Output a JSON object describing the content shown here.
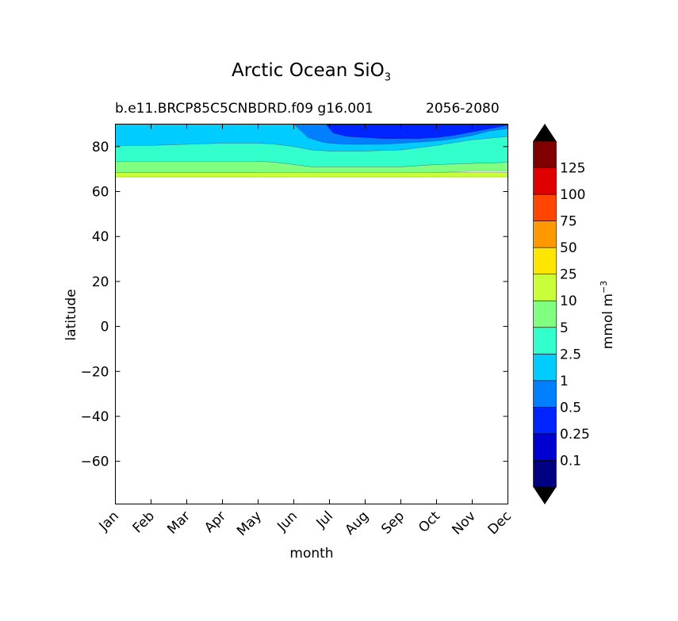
{
  "chart_data": {
    "type": "heatmap",
    "title_main": "Arctic Ocean SiO",
    "title_sub": "3",
    "subtitle_left": "b.e11.BRCP85C5CNBDRD.f09 g16.001",
    "subtitle_right": "2056-2080",
    "xlabel": "month",
    "ylabel": "latitude",
    "x_categories": [
      "Jan",
      "Feb",
      "Mar",
      "Apr",
      "May",
      "Jun",
      "Jul",
      "Aug",
      "Sep",
      "Oct",
      "Nov",
      "Dec"
    ],
    "y_ticks": [
      80,
      60,
      40,
      20,
      0,
      -20,
      -40,
      -60
    ],
    "y_range": [
      -79,
      90
    ],
    "colorbar": {
      "label": "mmol m",
      "label_exp": "−3",
      "levels": [
        "0.1",
        "0.25",
        "0.5",
        "1",
        "2.5",
        "5",
        "10",
        "25",
        "50",
        "75",
        "100",
        "125"
      ],
      "colors": [
        "#000080",
        "#0000d0",
        "#0024ff",
        "#0080ff",
        "#00ccff",
        "#33ffcc",
        "#80ff80",
        "#c8ff38",
        "#ffe600",
        "#ff9900",
        "#ff4500",
        "#e00000",
        "#800000"
      ],
      "extend": "both"
    },
    "bands": [
      {
        "level": 4,
        "x": [
          0,
          1,
          2,
          3,
          4,
          4.5,
          5,
          5.5,
          6,
          7,
          8,
          9,
          10,
          11
        ],
        "lo": [
          80.5,
          80.5,
          81,
          81.5,
          81.5,
          81,
          80,
          78.5,
          78,
          78,
          78.5,
          80.5,
          83,
          84.5
        ],
        "hi": [
          90,
          90,
          90,
          90,
          90,
          90,
          90,
          90,
          90,
          90,
          90,
          90,
          90,
          90
        ]
      },
      {
        "level": 3,
        "x": [
          5,
          5.4,
          5.8,
          6,
          6.5,
          7,
          7.5,
          8,
          8.5,
          9,
          9.5,
          10,
          10.5,
          11
        ],
        "lo": [
          90,
          84,
          82,
          81.5,
          81,
          81,
          81,
          81.5,
          82,
          82.5,
          83.5,
          85,
          87,
          88
        ],
        "hi": [
          90,
          90,
          90,
          90,
          90,
          90,
          90,
          90,
          90,
          90,
          90,
          90,
          90,
          90
        ]
      },
      {
        "level": 2,
        "x": [
          5.9,
          6.1,
          6.5,
          7,
          7.5,
          8,
          8.5,
          9,
          9.5,
          10,
          10.5,
          11
        ],
        "lo": [
          90,
          86,
          84.5,
          84,
          83.5,
          83.5,
          83.5,
          84,
          85,
          86.5,
          88,
          89.5
        ],
        "hi": [
          90,
          90,
          90,
          90,
          90,
          90,
          90,
          90,
          90,
          90,
          90,
          90
        ]
      },
      {
        "level": 5,
        "x": [
          0,
          1,
          2,
          3,
          4,
          4.5,
          5,
          5.5,
          6,
          7,
          8,
          9,
          10,
          11
        ],
        "lo": [
          73.5,
          73.5,
          73.5,
          73.5,
          73.5,
          73,
          72,
          71,
          71,
          71,
          71,
          72,
          72.5,
          73
        ],
        "hi": [
          80.5,
          80.5,
          81,
          81.5,
          81.5,
          81,
          80,
          78.5,
          78,
          78,
          78.5,
          80.5,
          83,
          84.5
        ]
      },
      {
        "level": 6,
        "x": [
          0,
          1,
          2,
          3,
          4,
          4.5,
          5,
          5.5,
          6,
          7,
          8,
          9,
          10,
          11
        ],
        "lo": [
          68.5,
          68.5,
          68.5,
          68.5,
          68.5,
          68,
          67.5,
          67.5,
          67.5,
          67.5,
          68,
          68.5,
          69,
          69
        ],
        "hi": [
          73.5,
          73.5,
          73.5,
          73.5,
          73.5,
          73,
          72,
          71,
          71,
          71,
          71,
          72,
          72.5,
          73
        ]
      },
      {
        "level": 7,
        "x": [
          0,
          11
        ],
        "lo": [
          66.5,
          66.5
        ],
        "hi": [
          68.5,
          68.5
        ]
      }
    ]
  }
}
